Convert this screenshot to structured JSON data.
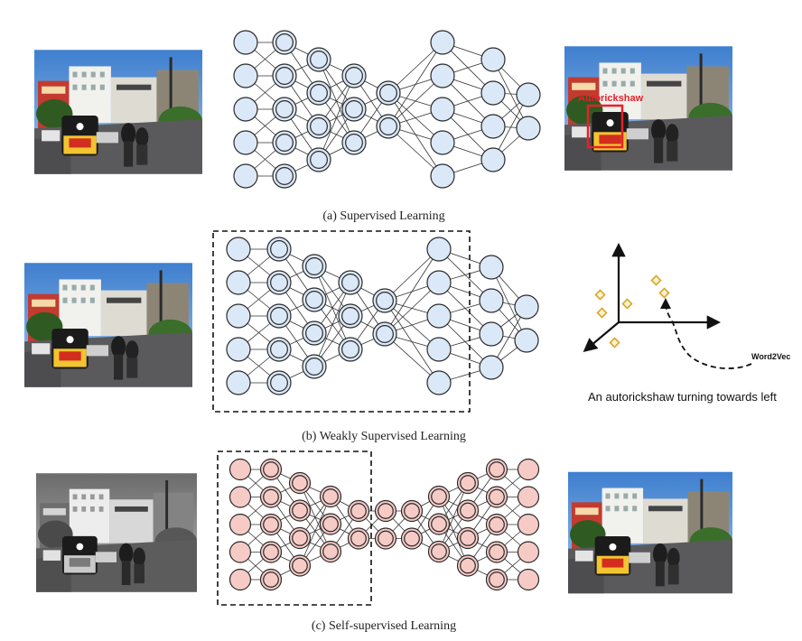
{
  "panels": {
    "a": {
      "caption": "(a) Supervised Learning",
      "detection_label": "Autorickshaw"
    },
    "b": {
      "caption": "(b) Weakly Supervised Learning",
      "embedding_label": "Word2Vec",
      "sentence": "An autorickshaw turning towards left"
    },
    "c": {
      "caption": "(c) Self-supervised Learning"
    }
  },
  "colors": {
    "blue_node": "#dbe8f7",
    "pink_node": "#f6cbc6",
    "detection_box": "#e8202a",
    "embedding_marker": "#d9a520"
  }
}
